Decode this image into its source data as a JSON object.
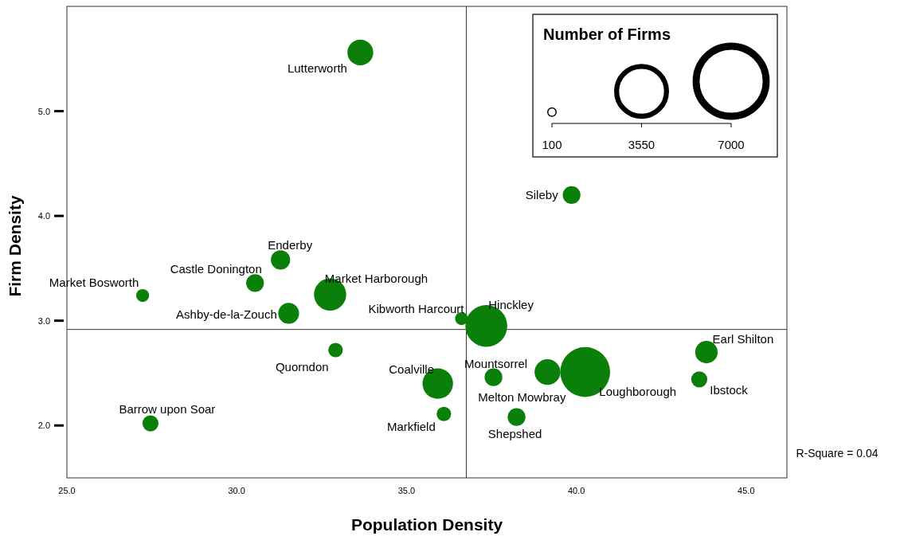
{
  "chart_data": {
    "type": "bubble",
    "xlabel": "Population Density",
    "ylabel": "Firm Density",
    "legend_title": "Number of Firms",
    "color": "#0a800a",
    "x": [
      33.64,
      39.86,
      31.29,
      30.54,
      27.23,
      32.75,
      31.53,
      36.62,
      37.35,
      32.91,
      43.83,
      35.92,
      37.56,
      39.15,
      40.26,
      43.62,
      27.46,
      36.1,
      38.24
    ],
    "values": [
      5.56,
      4.2,
      3.58,
      3.36,
      3.24,
      3.25,
      3.07,
      3.02,
      2.95,
      2.72,
      2.7,
      2.4,
      2.46,
      2.51,
      2.51,
      2.44,
      2.02,
      2.11,
      2.08
    ],
    "sizes": [
      950,
      450,
      530,
      450,
      240,
      1480,
      620,
      240,
      2500,
      300,
      720,
      1330,
      450,
      950,
      3550,
      370,
      370,
      300,
      450
    ],
    "size_legend": [
      100,
      3550,
      7000
    ],
    "xlim": [
      25,
      46.2
    ],
    "ylim": [
      1.5,
      6.0
    ],
    "xticks": [
      {
        "value": 25,
        "label": "25.0"
      },
      {
        "value": 30,
        "label": "30.0"
      },
      {
        "value": 35,
        "label": "35.0"
      },
      {
        "value": 40,
        "label": "40.0"
      },
      {
        "value": 45,
        "label": "45.0"
      }
    ],
    "yticks": [
      {
        "value": 2,
        "label": "2.0"
      },
      {
        "value": 3,
        "label": "3.0"
      },
      {
        "value": 4,
        "label": "4.0"
      },
      {
        "value": 5,
        "label": "5.0"
      }
    ],
    "ref_lines": [
      {
        "axis": "x",
        "value": 36.76,
        "color": "#333333"
      },
      {
        "axis": "y",
        "value": 2.916,
        "color": "#333333"
      }
    ],
    "annotations": [
      {
        "text": "Lutterworth",
        "x": 33.64,
        "y": 5.56
      },
      {
        "text": "Sileby",
        "x": 39.86,
        "y": 4.2
      },
      {
        "text": "Enderby",
        "x": 31.29,
        "y": 3.58
      },
      {
        "text": "Castle Donington",
        "x": 30.54,
        "y": 3.36
      },
      {
        "text": "Market Bosworth",
        "x": 27.23,
        "y": 3.24
      },
      {
        "text": "Market Harborough",
        "x": 32.75,
        "y": 3.25
      },
      {
        "text": "Ashby-de-la-Zouch",
        "x": 31.53,
        "y": 3.07
      },
      {
        "text": "Kibworth Harcourt",
        "x": 36.62,
        "y": 3.02
      },
      {
        "text": "Hinckley",
        "x": 37.35,
        "y": 2.95
      },
      {
        "text": "Quorndon",
        "x": 32.91,
        "y": 2.72
      },
      {
        "text": "Earl Shilton",
        "x": 43.83,
        "y": 2.7
      },
      {
        "text": "Coalville",
        "x": 35.92,
        "y": 2.4
      },
      {
        "text": "Mountsorrel",
        "x": 37.56,
        "y": 2.46
      },
      {
        "text": "Melton Mowbray",
        "x": 39.15,
        "y": 2.51
      },
      {
        "text": "Loughborough",
        "x": 40.26,
        "y": 2.51
      },
      {
        "text": "Ibstock",
        "x": 43.62,
        "y": 2.44
      },
      {
        "text": "Barrow upon Soar",
        "x": 27.46,
        "y": 2.02
      },
      {
        "text": "Markfield",
        "x": 36.1,
        "y": 2.11
      },
      {
        "text": "Shepshed",
        "x": 38.24,
        "y": 2.08
      },
      "R-Square = 0.04"
    ]
  }
}
